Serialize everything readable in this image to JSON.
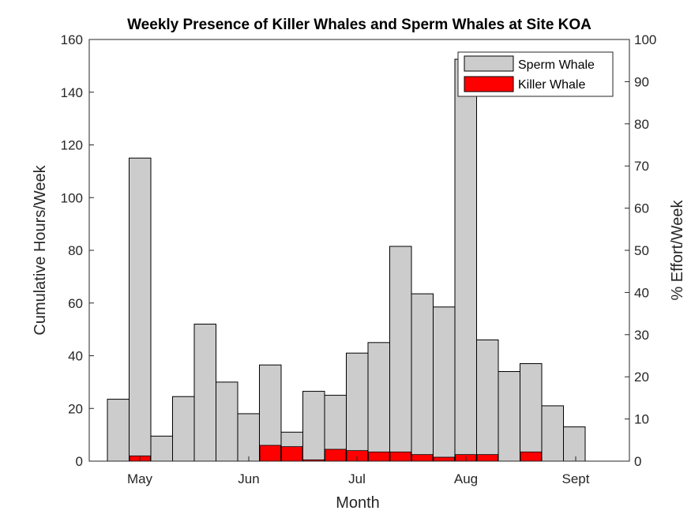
{
  "chart_data": {
    "type": "bar",
    "title": "Weekly Presence of Killer Whales and Sperm Whales at Site KOA",
    "xlabel": "Month",
    "ylabel": "Cumulative Hours/Week",
    "y2label": "% Effort/Week",
    "ylim": [
      0,
      160
    ],
    "y2lim": [
      0,
      100
    ],
    "yticks": [
      0,
      20,
      40,
      60,
      80,
      100,
      120,
      140,
      160
    ],
    "y2ticks": [
      0,
      10,
      20,
      30,
      40,
      50,
      60,
      70,
      80,
      90,
      100
    ],
    "xticks": [
      "May",
      "Jun",
      "Jul",
      "Aug",
      "Sept"
    ],
    "legend": "top-right",
    "grid": false,
    "series": [
      {
        "name": "Sperm Whale",
        "color": "#cccccc",
        "values": [
          23.5,
          115,
          9.5,
          24.5,
          52,
          30,
          18,
          36.5,
          11,
          26.5,
          25,
          41,
          45,
          81.5,
          63.5,
          58.5,
          152.5,
          46,
          34,
          37,
          21,
          13
        ]
      },
      {
        "name": "Killer Whale",
        "color": "#ff0000",
        "values": [
          0,
          2,
          0,
          0,
          0,
          0,
          0,
          6,
          5.5,
          0.5,
          4.5,
          4,
          3.5,
          3.5,
          2.5,
          1.5,
          2.5,
          2.5,
          0,
          3.5,
          0,
          0
        ]
      }
    ]
  }
}
